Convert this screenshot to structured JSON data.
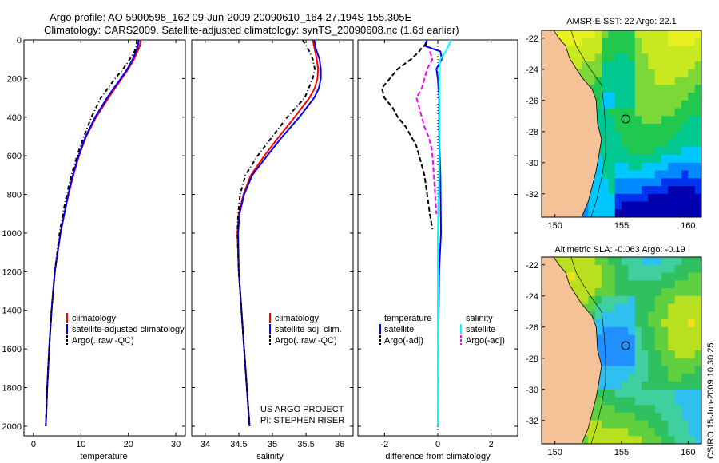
{
  "header": {
    "title_line1": "Argo profile: AO 5900598_162 09-Jun-2009 20090610_164 27.194S 155.305E",
    "title_line2": "Climatology: CARS2009. Satellite-adjusted climatology: synTS_20090608.nc (1.6d earlier)"
  },
  "footer": {
    "project": "US ARGO PROJECT",
    "pi": "PI: STEPHEN RISER",
    "timestamp": "CSIRO 15-Jun-2009 10:30:25"
  },
  "colors": {
    "climatology": "#ff0000",
    "satellite": "#0000ff",
    "argo": "#000000",
    "sat_salinity": "#00ffff",
    "argo_salinity": "#ff00ff",
    "land": "#f5c196",
    "sst_land_right": "#f2c79e"
  },
  "chart_data": [
    {
      "type": "line",
      "name": "temperature-profile",
      "xlabel": "temperature",
      "ylabel": "",
      "xlim": [
        -2,
        32
      ],
      "ylim": [
        2050,
        0
      ],
      "xticks": [
        "0",
        "10",
        "20",
        "30"
      ],
      "yticks": [
        "0",
        "200",
        "400",
        "600",
        "800",
        "1000",
        "1200",
        "1400",
        "1600",
        "1800",
        "2000"
      ],
      "legend": [
        "climatology",
        "satellite-adjusted climatology",
        "Argo(..raw -QC)"
      ],
      "series": [
        {
          "name": "climatology",
          "depth": [
            0,
            30,
            60,
            100,
            150,
            200,
            300,
            400,
            500,
            600,
            700,
            800,
            900,
            1000,
            1200,
            1400,
            1600,
            1800,
            2000
          ],
          "values": [
            22.6,
            22.4,
            21.9,
            21.2,
            20.0,
            18.6,
            15.8,
            13.2,
            11.1,
            9.6,
            8.4,
            7.4,
            6.5,
            5.7,
            4.5,
            3.8,
            3.3,
            2.9,
            2.6
          ]
        },
        {
          "name": "satellite-adjusted climatology",
          "depth": [
            0,
            30,
            60,
            100,
            150,
            200,
            300,
            400,
            500,
            600,
            700,
            800,
            900,
            1000,
            1200,
            1400,
            1600,
            1800,
            2000
          ],
          "values": [
            22.2,
            22.0,
            21.6,
            20.9,
            19.8,
            18.4,
            15.5,
            13.0,
            11.0,
            9.5,
            8.3,
            7.3,
            6.5,
            5.7,
            4.5,
            3.8,
            3.3,
            2.9,
            2.6
          ]
        },
        {
          "name": "Argo(..raw -QC)",
          "depth": [
            0,
            30,
            60,
            100,
            150,
            200,
            300,
            400,
            500,
            600,
            700,
            800,
            900,
            1000,
            1200,
            1400,
            1600,
            1800,
            2000
          ],
          "values": [
            21.8,
            21.7,
            21.3,
            20.3,
            18.9,
            17.2,
            14.2,
            12.2,
            10.6,
            9.2,
            8.0,
            7.0,
            6.2,
            5.5,
            4.5,
            3.8,
            3.3,
            2.9,
            2.6
          ]
        }
      ]
    },
    {
      "type": "line",
      "name": "salinity-profile",
      "xlabel": "salinity",
      "xlim": [
        33.8,
        36.2
      ],
      "ylim": [
        2050,
        0
      ],
      "xticks": [
        "34",
        "34.5",
        "35",
        "35.5",
        "36"
      ],
      "legend": [
        "climatology",
        "satellite adj. clim.",
        "Argo(..raw -QC)"
      ],
      "series": [
        {
          "name": "climatology",
          "depth": [
            0,
            50,
            100,
            150,
            200,
            250,
            300,
            400,
            500,
            600,
            700,
            800,
            900,
            1000,
            1200,
            1400,
            1600,
            1800,
            2000
          ],
          "values": [
            35.6,
            35.63,
            35.66,
            35.68,
            35.67,
            35.63,
            35.55,
            35.33,
            35.1,
            34.88,
            34.68,
            34.57,
            34.5,
            34.48,
            34.5,
            34.54,
            34.58,
            34.62,
            34.66
          ]
        },
        {
          "name": "satellite adj. clim.",
          "depth": [
            0,
            50,
            100,
            150,
            200,
            250,
            300,
            400,
            500,
            600,
            700,
            800,
            900,
            1000,
            1200,
            1400,
            1600,
            1800,
            2000
          ],
          "values": [
            35.62,
            35.65,
            35.7,
            35.72,
            35.72,
            35.69,
            35.62,
            35.4,
            35.15,
            34.92,
            34.7,
            34.58,
            34.51,
            34.49,
            34.5,
            34.54,
            34.58,
            34.62,
            34.66
          ]
        },
        {
          "name": "Argo(..raw -QC)",
          "depth": [
            0,
            30,
            60,
            100,
            150,
            200,
            300,
            400,
            500,
            600,
            700,
            800,
            900,
            1000,
            1200,
            1400,
            1600,
            1800,
            2000
          ],
          "values": [
            35.45,
            35.5,
            35.55,
            35.6,
            35.63,
            35.6,
            35.48,
            35.22,
            35.0,
            34.78,
            34.6,
            34.52,
            34.49,
            34.48,
            34.5,
            34.54,
            34.58,
            34.62,
            34.66
          ]
        }
      ]
    },
    {
      "type": "line",
      "name": "difference-profile",
      "xlabel": "difference from climatology",
      "xlim": [
        -3,
        3
      ],
      "ylim": [
        2050,
        0
      ],
      "xticks": [
        "-2",
        "0",
        "2"
      ],
      "legend": [
        "temperature",
        "satellite",
        "Argo(-adj)",
        "salinity",
        "satellite",
        "Argo(-adj)"
      ],
      "series": [
        {
          "name": "temperature satellite",
          "depth": [
            0,
            30,
            60,
            100,
            150,
            200,
            300,
            500,
            700,
            1000,
            1200,
            1600,
            2000
          ],
          "values": [
            -0.4,
            -0.5,
            0.1,
            0.15,
            -0.05,
            0.0,
            0.05,
            0.05,
            0.1,
            0.12,
            0.05,
            0.02,
            0.0
          ]
        },
        {
          "name": "temperature Argo(-adj)",
          "depth": [
            20,
            40,
            60,
            80,
            100,
            150,
            200,
            250,
            300,
            350,
            400,
            450,
            500,
            550,
            600,
            700,
            800,
            900,
            980
          ],
          "values": [
            -0.4,
            -0.6,
            -0.7,
            -0.85,
            -1.0,
            -1.5,
            -1.8,
            -2.1,
            -2.0,
            -1.7,
            -1.5,
            -1.2,
            -1.0,
            -0.8,
            -0.7,
            -0.5,
            -0.4,
            -0.3,
            -0.2
          ]
        },
        {
          "name": "salinity satellite",
          "depth": [
            0,
            30,
            60,
            100,
            150,
            200,
            300,
            500,
            700,
            1000,
            1200,
            1600,
            2000
          ],
          "values": [
            0.5,
            0.4,
            0.3,
            0.1,
            0.05,
            0.05,
            0.05,
            0.05,
            0.05,
            0.0,
            0.0,
            0.0,
            0.0
          ]
        },
        {
          "name": "salinity Argo(-adj)",
          "depth": [
            60,
            100,
            150,
            200,
            250,
            300,
            350,
            400,
            450,
            500,
            550,
            600,
            700,
            800,
            900
          ],
          "values": [
            -0.3,
            -0.2,
            -0.4,
            -0.5,
            -0.6,
            -0.8,
            -0.7,
            -0.6,
            -0.5,
            -0.35,
            -0.25,
            -0.2,
            -0.15,
            -0.1,
            -0.05
          ]
        }
      ]
    },
    {
      "type": "heatmap",
      "name": "sst-map",
      "title": "AMSR-E SST: 22 Argo: 22.1",
      "xticks": [
        "150",
        "155",
        "160"
      ],
      "yticks": [
        "-22",
        "-24",
        "-26",
        "-28",
        "-30",
        "-32"
      ],
      "xlim": [
        149,
        161
      ],
      "ylim": [
        -33.5,
        -21.5
      ],
      "argo_position": [
        155.305,
        -27.194
      ]
    },
    {
      "type": "heatmap",
      "name": "sla-map",
      "title": "Altimetric SLA: -0.063 Argo: -0.19",
      "xticks": [
        "150",
        "155",
        "160"
      ],
      "yticks": [
        "-22",
        "-24",
        "-26",
        "-28",
        "-30",
        "-32"
      ],
      "xlim": [
        149,
        161
      ],
      "ylim": [
        -33.5,
        -21.5
      ],
      "argo_position": [
        155.305,
        -27.194
      ]
    }
  ]
}
